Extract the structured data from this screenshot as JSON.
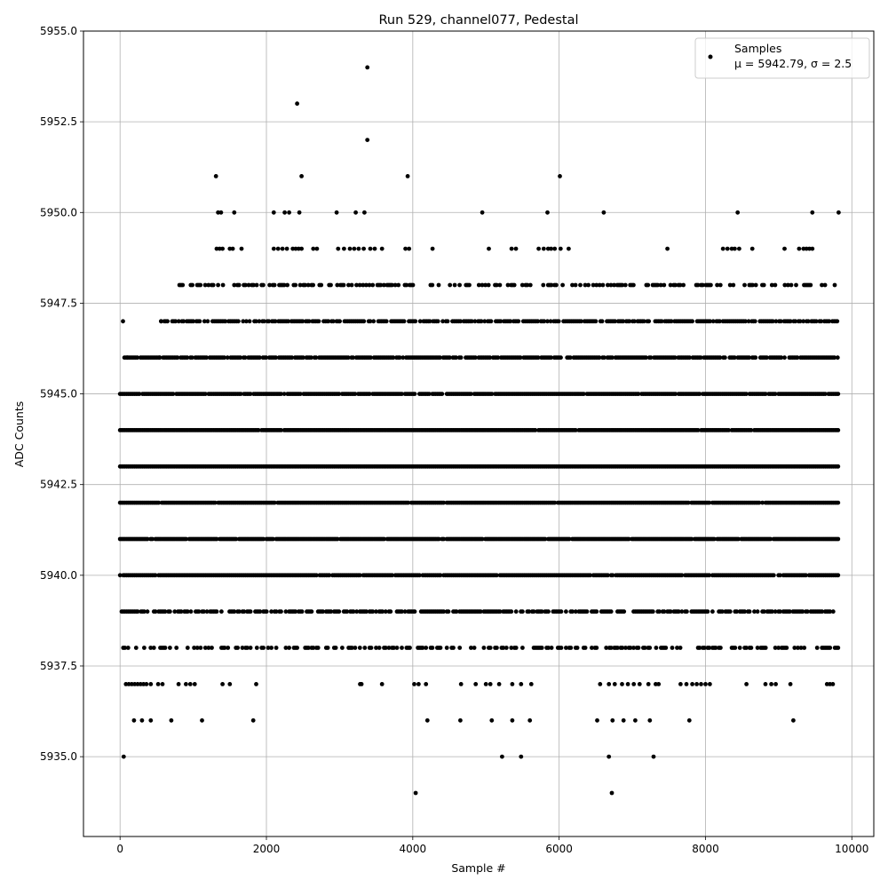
{
  "chart_data": {
    "type": "scatter",
    "title": "Run 529, channel077, Pedestal",
    "xlabel": "Sample #",
    "ylabel": "ADC Counts",
    "xlim": [
      -500,
      10300
    ],
    "ylim": [
      5932.8,
      5955.0
    ],
    "xticks": [
      0,
      2000,
      4000,
      6000,
      8000,
      10000
    ],
    "xtick_labels": [
      "0",
      "2000",
      "4000",
      "6000",
      "8000",
      "10000"
    ],
    "yticks": [
      5935.0,
      5937.5,
      5940.0,
      5942.5,
      5945.0,
      5947.5,
      5950.0,
      5952.5,
      5955.0
    ],
    "ytick_labels": [
      "5935.0",
      "5937.5",
      "5940.0",
      "5942.5",
      "5945.0",
      "5947.5",
      "5950.0",
      "5952.5",
      "5955.0"
    ],
    "grid": true,
    "legend": {
      "placement": "top-right",
      "entries": [
        {
          "label": "Samples",
          "stats": "μ = 5942.79, σ = 2.5",
          "color": "#000000"
        }
      ]
    },
    "series": [
      {
        "name": "Samples",
        "color": "#000000",
        "n_samples": 9850,
        "mean": 5942.79,
        "sigma": 2.5,
        "points": [
          [
            50,
            5935
          ],
          [
            4040,
            5934
          ],
          [
            5220,
            5935
          ],
          [
            5480,
            5935
          ],
          [
            6680,
            5935
          ],
          [
            6720,
            5934
          ],
          [
            7290,
            5935
          ],
          [
            3380,
            5954
          ],
          [
            2420,
            5953
          ],
          [
            3380,
            5952
          ],
          [
            1310,
            5951
          ],
          [
            2480,
            5951
          ],
          [
            3930,
            5951
          ],
          [
            6010,
            5951
          ],
          [
            1340,
            5950
          ],
          [
            1380,
            5950
          ],
          [
            1560,
            5950
          ],
          [
            2100,
            5950
          ],
          [
            2250,
            5950
          ],
          [
            2310,
            5950
          ],
          [
            2450,
            5950
          ],
          [
            2960,
            5950
          ],
          [
            3220,
            5950
          ],
          [
            3340,
            5950
          ],
          [
            4950,
            5950
          ],
          [
            5840,
            5950
          ],
          [
            6610,
            5950
          ],
          [
            8440,
            5950
          ],
          [
            9460,
            5950
          ],
          [
            9820,
            5950
          ],
          [
            40,
            5947
          ],
          [
            60,
            5946
          ],
          [
            100,
            5946
          ],
          [
            560,
            5947
          ],
          [
            540,
            5946
          ],
          [
            190,
            5936
          ],
          [
            300,
            5936
          ],
          [
            420,
            5936
          ],
          [
            700,
            5936
          ],
          [
            1120,
            5936
          ],
          [
            1820,
            5936
          ],
          [
            4200,
            5936
          ],
          [
            4650,
            5936
          ],
          [
            5080,
            5936
          ],
          [
            5360,
            5936
          ],
          [
            5600,
            5936
          ],
          [
            6520,
            5936
          ],
          [
            6730,
            5936
          ],
          [
            6880,
            5936
          ],
          [
            7040,
            5936
          ],
          [
            7240,
            5936
          ],
          [
            7780,
            5936
          ],
          [
            9200,
            5936
          ]
        ],
        "dense_rows": [
          {
            "y": 5949,
            "x": [
              1320,
              1360,
              1400,
              1500,
              1540,
              1660,
              2100,
              2160,
              2220,
              2280,
              2360,
              2400,
              2440,
              2480,
              2640,
              2690,
              2980,
              3060,
              3140,
              3200,
              3260,
              3330,
              3420,
              3480,
              3580,
              3900,
              3950,
              4270,
              5040,
              5350,
              5410,
              5720,
              5790,
              5850,
              5890,
              5940,
              6020,
              6130,
              7480,
              8240,
              8300,
              8360,
              8400,
              8460,
              8640,
              9080,
              9280,
              9340,
              9380,
              9420,
              9460
            ]
          },
          {
            "y": 5948,
            "x_range": [
              790,
              9820
            ],
            "density": 0.45,
            "gaps": [
              [
                860,
                940
              ],
              [
                4440,
                4500
              ],
              [
                7080,
                7180
              ],
              [
                8980,
                9040
              ]
            ]
          },
          {
            "y": 5947,
            "x_range": [
              560,
              9820
            ],
            "density": 0.75
          },
          {
            "y": 5946,
            "x_range": [
              60,
              9820
            ],
            "density": 0.85
          },
          {
            "y": 5945,
            "x_range": [
              0,
              9820
            ],
            "density": 0.95
          },
          {
            "y": 5944,
            "x_range": [
              0,
              9820
            ],
            "density": 0.98
          },
          {
            "y": 5943,
            "x_range": [
              0,
              9820
            ],
            "density": 1.0
          },
          {
            "y": 5942,
            "x_range": [
              0,
              9820
            ],
            "density": 0.98
          },
          {
            "y": 5941,
            "x_range": [
              0,
              9820
            ],
            "density": 0.98
          },
          {
            "y": 5940,
            "x_range": [
              0,
              9820
            ],
            "density": 0.95
          },
          {
            "y": 5939,
            "x_range": [
              0,
              9820
            ],
            "density": 0.7
          },
          {
            "y": 5938,
            "x_range": [
              0,
              9820
            ],
            "density": 0.4
          },
          {
            "y": 5937,
            "x": [
              80,
              120,
              160,
              200,
              240,
              280,
              320,
              360,
              420,
              520,
              580,
              800,
              900,
              960,
              1020,
              1400,
              1500,
              1860,
              3280,
              3300,
              3580,
              4020,
              4080,
              4180,
              4660,
              4860,
              5000,
              5060,
              5180,
              5360,
              5480,
              5620,
              6560,
              6680,
              6760,
              6860,
              6940,
              7020,
              7100,
              7220,
              7320,
              7360,
              7660,
              7740,
              7820,
              7880,
              7940,
              8000,
              8060,
              8560,
              8820,
              8900,
              8960,
              9160,
              9660,
              9700,
              9740
            ]
          }
        ]
      }
    ]
  }
}
